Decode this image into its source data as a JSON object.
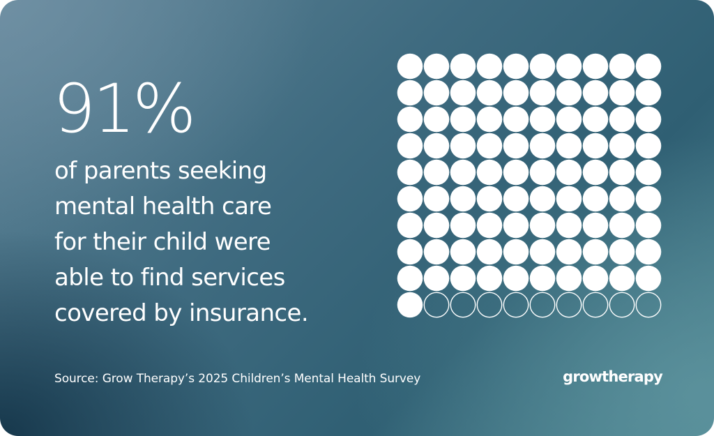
{
  "headline": {
    "percent": "91%"
  },
  "statement": {
    "lines": [
      "of parents seeking",
      "mental health care",
      "for their child were",
      "able to find services",
      "covered by insurance."
    ]
  },
  "source": "Source: Grow Therapy’s 2025 Children’s Mental Health Survey",
  "brand": {
    "logo_text": "growtherapy"
  },
  "colors": {
    "dot_fill": "#ffffff",
    "text": "#ffffff"
  },
  "chart_data": {
    "type": "waffle",
    "rows": 10,
    "columns": 10,
    "total": 100,
    "filled": 91,
    "empty": 9,
    "title": "",
    "fill_order": "row-major from top-left"
  }
}
